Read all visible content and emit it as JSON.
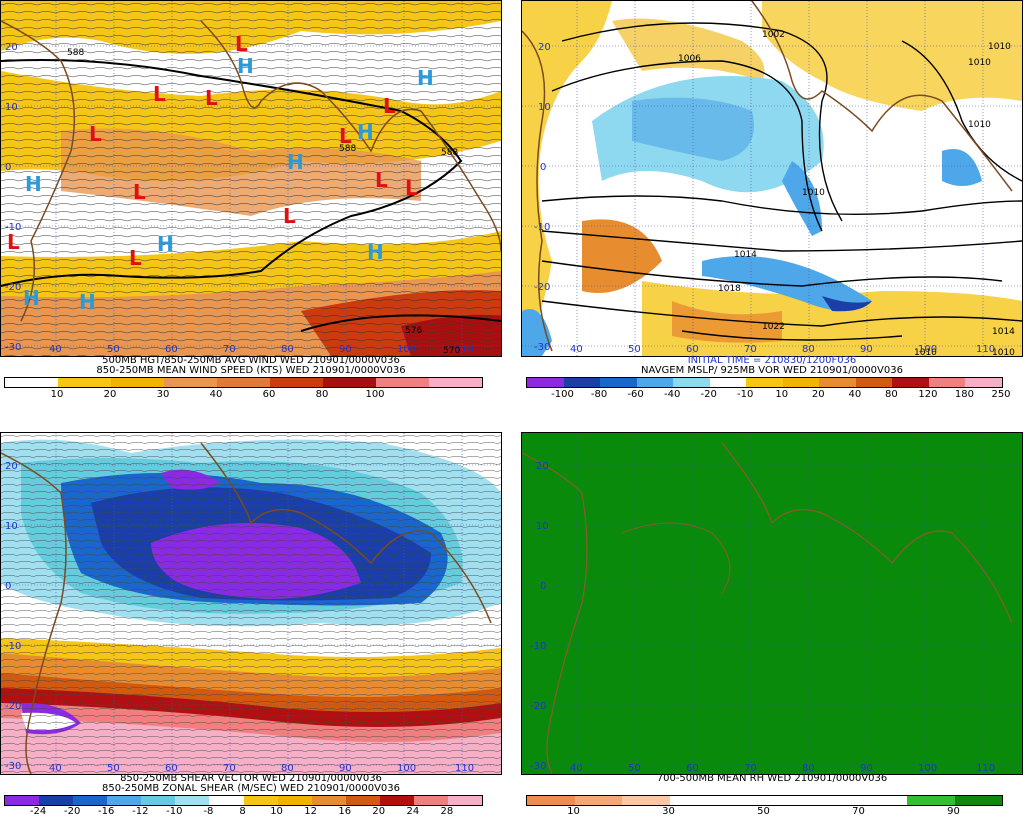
{
  "panels": {
    "tl": {
      "caption1": "500MB HGT/850-250MB AVG WIND WED 210901/0000V036",
      "caption2": "850-250MB MEAN WIND SPEED (KTS) WED 210901/0000V036",
      "colorbar": {
        "colors": [
          "#ffffff",
          "#f5c518",
          "#f0b400",
          "#e89650",
          "#e07a3a",
          "#cc3a10",
          "#a81010",
          "#f08080",
          "#f5b0c8"
        ],
        "ticks": [
          "10",
          "20",
          "30",
          "40",
          "60",
          "80",
          "100"
        ]
      },
      "lat_labels": [
        "20",
        "10",
        "0",
        "-10",
        "-20",
        "-30"
      ],
      "lon_labels": [
        "40",
        "50",
        "60",
        "70",
        "80",
        "90",
        "100",
        "110"
      ],
      "contours": [
        "588",
        "588",
        "588",
        "576",
        "570"
      ],
      "pressure_centers": [
        "H",
        "L"
      ]
    },
    "tr": {
      "caption_initial": "INITIAL TIME = 210830/1200F036",
      "caption1": "NAVGEM MSLP/ 925MB VOR WED 210901/0000V036",
      "colorbar": {
        "colors": [
          "#8a2be2",
          "#1a3fa8",
          "#1a66cc",
          "#4ea7e8",
          "#8ed8f0",
          "#ffffff",
          "#f5c518",
          "#f0b400",
          "#e88c30",
          "#d25a10",
          "#b01010",
          "#f08080",
          "#f5b0c8"
        ],
        "ticks": [
          "-100",
          "-80",
          "-60",
          "-40",
          "-20",
          "-10",
          "10",
          "20",
          "40",
          "80",
          "120",
          "180",
          "250"
        ]
      },
      "lat_labels": [
        "20",
        "10",
        "0",
        "-10",
        "-20",
        "-30"
      ],
      "lon_labels": [
        "40",
        "50",
        "60",
        "70",
        "80",
        "90",
        "100",
        "110"
      ],
      "isobars": [
        "1002",
        "1006",
        "1010",
        "1014",
        "1018",
        "1022",
        "1010",
        "1010",
        "1010",
        "1010",
        "1014",
        "1010"
      ]
    },
    "bl": {
      "caption1": "850-250MB SHEAR VECTOR WED 210901/0000V036",
      "caption2": "850-250MB ZONAL SHEAR (M/SEC) WED 210901/0000V036",
      "colorbar": {
        "colors": [
          "#8a2be2",
          "#1a3fa8",
          "#1a66cc",
          "#4ea7e8",
          "#66ccdd",
          "#a0e0f0",
          "#ffffff",
          "#f5c518",
          "#f0b400",
          "#e88c30",
          "#d25a10",
          "#b01010",
          "#f08080",
          "#f5b0c8"
        ],
        "ticks": [
          "-24",
          "-20",
          "-16",
          "-12",
          "-10",
          "-8",
          "8",
          "10",
          "12",
          "16",
          "20",
          "24",
          "28"
        ]
      },
      "lat_labels": [
        "20",
        "10",
        "0",
        "-10",
        "-20",
        "-30"
      ],
      "lon_labels": [
        "40",
        "50",
        "60",
        "70",
        "80",
        "90",
        "100",
        "110"
      ]
    },
    "br": {
      "caption1": "700-500MB MEAN RH WED 210901/0000V036",
      "colorbar": {
        "colors": [
          "#f08c50",
          "#f4a878",
          "#f8c8a8",
          "#ffffff",
          "#ffffff",
          "#ffffff",
          "#ffffff",
          "#ffffff",
          "#30c030",
          "#108810"
        ],
        "ticks": [
          "10",
          "30",
          "50",
          "70",
          "90"
        ]
      },
      "lat_labels": [
        "20",
        "10",
        "0",
        "-10",
        "-20",
        "-30"
      ],
      "lon_labels": [
        "40",
        "50",
        "60",
        "70",
        "80",
        "90",
        "100",
        "110"
      ],
      "fill_color": "#0a8a0a"
    }
  }
}
